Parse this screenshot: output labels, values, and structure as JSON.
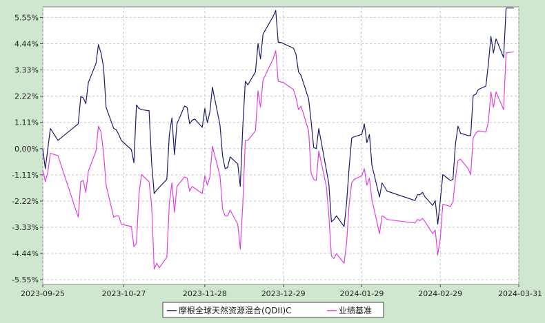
{
  "chart_data": {
    "type": "line",
    "title": "",
    "xlabel": "",
    "ylabel": "",
    "ylim": [
      -5.75,
      6.0
    ],
    "y_ticks": [
      5.55,
      4.44,
      3.33,
      2.22,
      1.11,
      0.0,
      -1.11,
      -2.22,
      -3.33,
      -4.44,
      -5.55
    ],
    "y_tick_labels": [
      "5.55%",
      "4.44%",
      "3.33%",
      "2.22%",
      "1.11%",
      "0.00%",
      "-1.11%",
      "-2.22%",
      "-3.33%",
      "-4.44%",
      "-5.55%"
    ],
    "x_ticks": [
      "2023-09-25",
      "2023-10-27",
      "2023-11-28",
      "2023-12-29",
      "2024-01-29",
      "2024-02-29",
      "2024-03-31"
    ],
    "x_range": [
      "2023-09-25",
      "2024-03-31"
    ],
    "grid": true,
    "legend_position": "bottom-center",
    "colors": {
      "fund": "#1a1a6e",
      "benchmark": "#e040e0",
      "background": "#ffffff",
      "outer": "#cfe7cf"
    },
    "series": [
      {
        "name": "摩根全球天然资源混合(QDII)C",
        "color": "#1a1a6e",
        "points": [
          [
            "2023-09-25",
            0.0
          ],
          [
            "2023-09-26",
            -0.85
          ],
          [
            "2023-09-28",
            0.85
          ],
          [
            "2023-10-01",
            0.35
          ],
          [
            "2023-10-09",
            1.05
          ],
          [
            "2023-10-10",
            2.2
          ],
          [
            "2023-10-11",
            2.15
          ],
          [
            "2023-10-12",
            1.9
          ],
          [
            "2023-10-13",
            2.8
          ],
          [
            "2023-10-16",
            3.6
          ],
          [
            "2023-10-17",
            4.4
          ],
          [
            "2023-10-18",
            4.05
          ],
          [
            "2023-10-19",
            3.45
          ],
          [
            "2023-10-20",
            1.75
          ],
          [
            "2023-10-23",
            0.85
          ],
          [
            "2023-10-24",
            0.8
          ],
          [
            "2023-10-25",
            0.6
          ],
          [
            "2023-10-26",
            0.35
          ],
          [
            "2023-10-30",
            -0.05
          ],
          [
            "2023-10-31",
            -0.6
          ],
          [
            "2023-11-01",
            1.85
          ],
          [
            "2023-11-02",
            1.7
          ],
          [
            "2023-11-03",
            1.65
          ],
          [
            "2023-11-06",
            1.6
          ],
          [
            "2023-11-07",
            -0.6
          ],
          [
            "2023-11-08",
            -1.9
          ],
          [
            "2023-11-09",
            -1.75
          ],
          [
            "2023-11-13",
            -1.3
          ],
          [
            "2023-11-14",
            0.6
          ],
          [
            "2023-11-15",
            1.3
          ],
          [
            "2023-11-16",
            -0.25
          ],
          [
            "2023-11-17",
            1.05
          ],
          [
            "2023-11-20",
            1.8
          ],
          [
            "2023-11-21",
            1.75
          ],
          [
            "2023-11-22",
            1.05
          ],
          [
            "2023-11-23",
            1.2
          ],
          [
            "2023-11-24",
            1.25
          ],
          [
            "2023-11-27",
            0.9
          ],
          [
            "2023-11-28",
            1.7
          ],
          [
            "2023-11-29",
            1.1
          ],
          [
            "2023-11-30",
            1.55
          ],
          [
            "2023-12-01",
            2.6
          ],
          [
            "2023-12-04",
            1.0
          ],
          [
            "2023-12-05",
            -0.3
          ],
          [
            "2023-12-06",
            -0.85
          ],
          [
            "2023-12-07",
            -0.8
          ],
          [
            "2023-12-08",
            -0.35
          ],
          [
            "2023-12-11",
            -0.65
          ],
          [
            "2023-12-12",
            -1.6
          ],
          [
            "2023-12-13",
            0.9
          ],
          [
            "2023-12-14",
            2.85
          ],
          [
            "2023-12-15",
            2.7
          ],
          [
            "2023-12-18",
            3.25
          ],
          [
            "2023-12-19",
            4.45
          ],
          [
            "2023-12-20",
            3.8
          ],
          [
            "2023-12-21",
            4.85
          ],
          [
            "2023-12-25",
            5.6
          ],
          [
            "2023-12-26",
            5.85
          ],
          [
            "2023-12-27",
            4.5
          ],
          [
            "2023-12-28",
            4.5
          ],
          [
            "2023-12-29",
            4.45
          ],
          [
            "2024-01-02",
            4.25
          ],
          [
            "2024-01-03",
            4.0
          ],
          [
            "2024-01-04",
            3.25
          ],
          [
            "2024-01-05",
            3.1
          ],
          [
            "2024-01-08",
            2.1
          ],
          [
            "2024-01-09",
            1.15
          ],
          [
            "2024-01-10",
            0.05
          ],
          [
            "2024-01-11",
            0.0
          ],
          [
            "2024-01-12",
            0.85
          ],
          [
            "2024-01-15",
            -0.9
          ],
          [
            "2024-01-16",
            -1.5
          ],
          [
            "2024-01-17",
            -3.1
          ],
          [
            "2024-01-18",
            -3.0
          ],
          [
            "2024-01-19",
            -2.85
          ],
          [
            "2024-01-22",
            -3.3
          ],
          [
            "2024-01-23",
            -2.3
          ],
          [
            "2024-01-24",
            -0.8
          ],
          [
            "2024-01-25",
            0.45
          ],
          [
            "2024-01-26",
            0.5
          ],
          [
            "2024-01-29",
            0.6
          ],
          [
            "2024-01-30",
            1.05
          ],
          [
            "2024-01-31",
            0.25
          ],
          [
            "2024-02-01",
            0.6
          ],
          [
            "2024-02-02",
            -0.7
          ],
          [
            "2024-02-05",
            -2.05
          ],
          [
            "2024-02-06",
            -1.45
          ],
          [
            "2024-02-08",
            -1.8
          ],
          [
            "2024-02-19",
            -2.2
          ],
          [
            "2024-02-20",
            -1.95
          ],
          [
            "2024-02-21",
            -1.95
          ],
          [
            "2024-02-22",
            -1.85
          ],
          [
            "2024-02-23",
            -2.05
          ],
          [
            "2024-02-26",
            -2.4
          ],
          [
            "2024-02-27",
            -2.2
          ],
          [
            "2024-02-28",
            -3.2
          ],
          [
            "2024-02-29",
            -2.2
          ],
          [
            "2024-03-01",
            -1.1
          ],
          [
            "2024-03-04",
            -1.35
          ],
          [
            "2024-03-05",
            -1.3
          ],
          [
            "2024-03-06",
            0.2
          ],
          [
            "2024-03-07",
            0.95
          ],
          [
            "2024-03-08",
            0.65
          ],
          [
            "2024-03-11",
            0.55
          ],
          [
            "2024-03-12",
            0.55
          ],
          [
            "2024-03-13",
            2.25
          ],
          [
            "2024-03-14",
            2.3
          ],
          [
            "2024-03-15",
            2.5
          ],
          [
            "2024-03-18",
            2.65
          ],
          [
            "2024-03-19",
            3.6
          ],
          [
            "2024-03-20",
            4.75
          ],
          [
            "2024-03-21",
            4.05
          ],
          [
            "2024-03-22",
            4.65
          ],
          [
            "2024-03-25",
            3.85
          ],
          [
            "2024-03-26",
            5.95
          ],
          [
            "2024-03-29",
            5.95
          ]
        ]
      },
      {
        "name": "业绩基准",
        "color": "#e040e0",
        "points": [
          [
            "2023-09-25",
            -0.9
          ],
          [
            "2023-09-26",
            -1.4
          ],
          [
            "2023-09-27",
            -1.0
          ],
          [
            "2023-09-28",
            -0.2
          ],
          [
            "2023-10-01",
            -0.3
          ],
          [
            "2023-10-09",
            -2.9
          ],
          [
            "2023-10-10",
            -1.4
          ],
          [
            "2023-10-11",
            -1.35
          ],
          [
            "2023-10-12",
            -1.85
          ],
          [
            "2023-10-13",
            -0.95
          ],
          [
            "2023-10-16",
            -0.1
          ],
          [
            "2023-10-17",
            0.95
          ],
          [
            "2023-10-18",
            0.7
          ],
          [
            "2023-10-19",
            -0.15
          ],
          [
            "2023-10-20",
            -1.55
          ],
          [
            "2023-10-23",
            -2.9
          ],
          [
            "2023-10-24",
            -2.85
          ],
          [
            "2023-10-25",
            -2.85
          ],
          [
            "2023-10-26",
            -3.2
          ],
          [
            "2023-10-30",
            -3.3
          ],
          [
            "2023-10-31",
            -4.15
          ],
          [
            "2023-11-01",
            -4.0
          ],
          [
            "2023-11-02",
            -1.9
          ],
          [
            "2023-11-03",
            -1.1
          ],
          [
            "2023-11-06",
            -1.4
          ],
          [
            "2023-11-07",
            -2.4
          ],
          [
            "2023-11-08",
            -5.1
          ],
          [
            "2023-11-09",
            -4.85
          ],
          [
            "2023-11-10",
            -5.05
          ],
          [
            "2023-11-13",
            -4.6
          ],
          [
            "2023-11-14",
            -2.3
          ],
          [
            "2023-11-15",
            -1.45
          ],
          [
            "2023-11-16",
            -2.7
          ],
          [
            "2023-11-17",
            -1.6
          ],
          [
            "2023-11-20",
            -1.2
          ],
          [
            "2023-11-21",
            -1.25
          ],
          [
            "2023-11-22",
            -1.8
          ],
          [
            "2023-11-23",
            -1.6
          ],
          [
            "2023-11-27",
            -1.9
          ],
          [
            "2023-11-28",
            -1.15
          ],
          [
            "2023-11-29",
            -1.55
          ],
          [
            "2023-11-30",
            -1.2
          ],
          [
            "2023-12-01",
            0.1
          ],
          [
            "2023-12-04",
            -1.15
          ],
          [
            "2023-12-05",
            -2.55
          ],
          [
            "2023-12-06",
            -2.85
          ],
          [
            "2023-12-07",
            -2.85
          ],
          [
            "2023-12-08",
            -2.6
          ],
          [
            "2023-12-11",
            -3.2
          ],
          [
            "2023-12-12",
            -4.25
          ],
          [
            "2023-12-13",
            -2.4
          ],
          [
            "2023-12-14",
            0.35
          ],
          [
            "2023-12-15",
            0.35
          ],
          [
            "2023-12-18",
            0.75
          ],
          [
            "2023-12-19",
            2.45
          ],
          [
            "2023-12-20",
            1.75
          ],
          [
            "2023-12-21",
            2.9
          ],
          [
            "2023-12-25",
            3.8
          ],
          [
            "2023-12-26",
            4.15
          ],
          [
            "2023-12-27",
            2.85
          ],
          [
            "2023-12-29",
            2.8
          ],
          [
            "2024-01-02",
            2.5
          ],
          [
            "2024-01-03",
            2.15
          ],
          [
            "2024-01-04",
            1.65
          ],
          [
            "2024-01-05",
            1.8
          ],
          [
            "2024-01-08",
            0.75
          ],
          [
            "2024-01-09",
            -1.05
          ],
          [
            "2024-01-10",
            -1.3
          ],
          [
            "2024-01-11",
            -1.35
          ],
          [
            "2024-01-12",
            -0.1
          ],
          [
            "2024-01-15",
            -1.6
          ],
          [
            "2024-01-16",
            -2.85
          ],
          [
            "2024-01-17",
            -4.55
          ],
          [
            "2024-01-18",
            -4.65
          ],
          [
            "2024-01-19",
            -4.45
          ],
          [
            "2024-01-22",
            -4.85
          ],
          [
            "2024-01-23",
            -4.0
          ],
          [
            "2024-01-24",
            -2.35
          ],
          [
            "2024-01-25",
            -1.45
          ],
          [
            "2024-01-26",
            -1.3
          ],
          [
            "2024-01-29",
            -1.15
          ],
          [
            "2024-01-30",
            -0.85
          ],
          [
            "2024-01-31",
            -1.55
          ],
          [
            "2024-02-01",
            -1.25
          ],
          [
            "2024-02-02",
            -2.15
          ],
          [
            "2024-02-05",
            -3.6
          ],
          [
            "2024-02-06",
            -2.85
          ],
          [
            "2024-02-07",
            -2.9
          ],
          [
            "2024-02-08",
            -3.0
          ],
          [
            "2024-02-19",
            -3.15
          ],
          [
            "2024-02-20",
            -3.0
          ],
          [
            "2024-02-21",
            -3.05
          ],
          [
            "2024-02-22",
            -2.95
          ],
          [
            "2024-02-23",
            -3.1
          ],
          [
            "2024-02-26",
            -3.6
          ],
          [
            "2024-02-27",
            -3.45
          ],
          [
            "2024-02-28",
            -4.5
          ],
          [
            "2024-02-29",
            -3.8
          ],
          [
            "2024-03-01",
            -2.35
          ],
          [
            "2024-03-04",
            -2.45
          ],
          [
            "2024-03-05",
            -2.25
          ],
          [
            "2024-03-06",
            -1.25
          ],
          [
            "2024-03-07",
            -0.5
          ],
          [
            "2024-03-08",
            -0.45
          ],
          [
            "2024-03-11",
            -0.85
          ],
          [
            "2024-03-12",
            -1.1
          ],
          [
            "2024-03-13",
            0.45
          ],
          [
            "2024-03-14",
            0.65
          ],
          [
            "2024-03-15",
            0.75
          ],
          [
            "2024-03-18",
            0.7
          ],
          [
            "2024-03-19",
            1.15
          ],
          [
            "2024-03-20",
            2.4
          ],
          [
            "2024-03-21",
            1.75
          ],
          [
            "2024-03-22",
            2.4
          ],
          [
            "2024-03-25",
            1.65
          ],
          [
            "2024-03-26",
            4.05
          ],
          [
            "2024-03-29",
            4.1
          ]
        ]
      }
    ]
  }
}
